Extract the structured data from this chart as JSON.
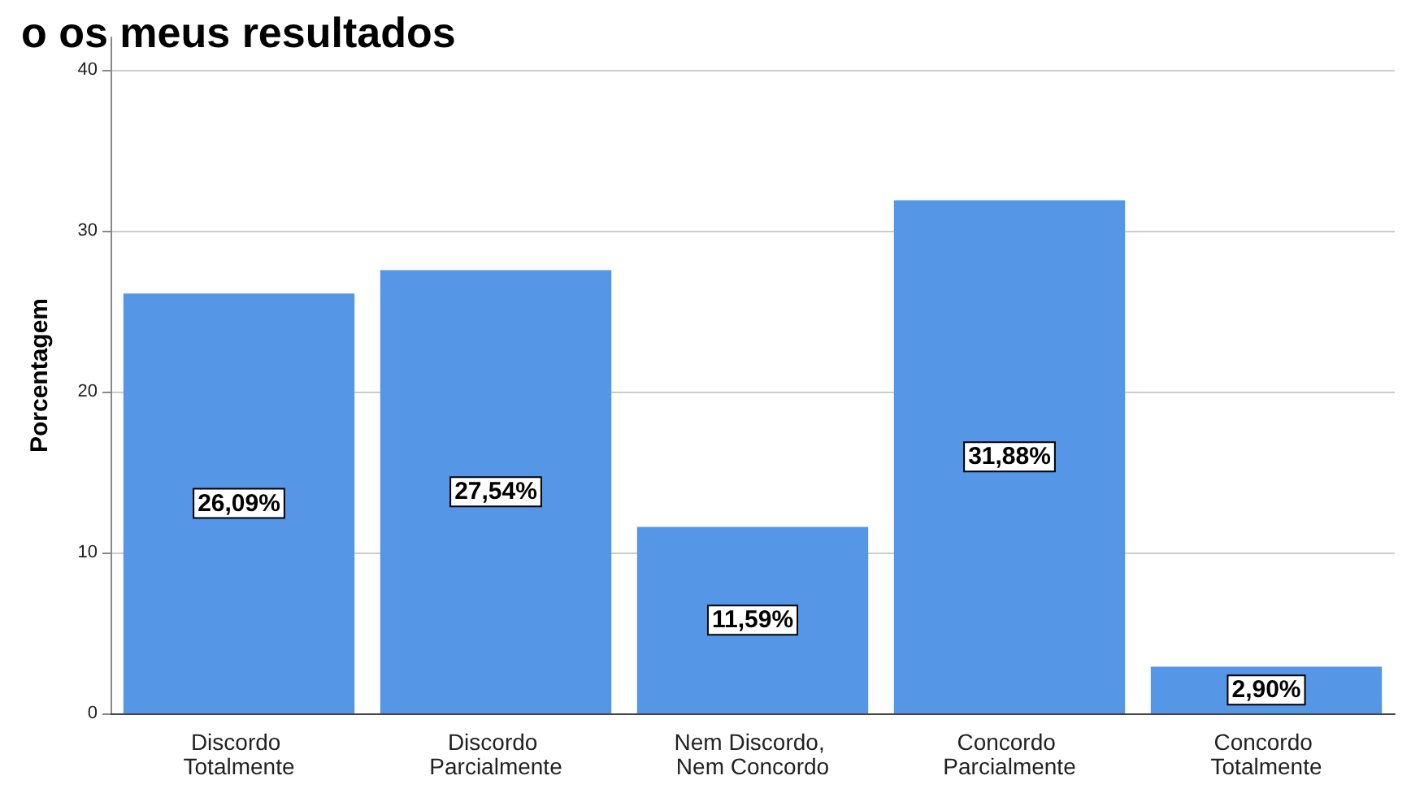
{
  "chart_data": {
    "type": "bar",
    "title": "o os meus resultados",
    "ylabel": "Porcentagem",
    "categories": [
      "Discordo Totalmente",
      "Discordo Parcialmente",
      "Nem Discordo, Nem Concordo",
      "Concordo Parcialmente",
      "Concordo Totalmente"
    ],
    "values": [
      26.09,
      27.54,
      11.59,
      31.88,
      2.9
    ],
    "value_labels": [
      "26,09%",
      "27,54%",
      "11,59%",
      "31,88%",
      "2,90%"
    ],
    "color": "#5596e6",
    "ylim": [
      0,
      42
    ],
    "yticks": [
      0,
      10,
      20,
      30,
      40
    ],
    "grid": "y"
  }
}
